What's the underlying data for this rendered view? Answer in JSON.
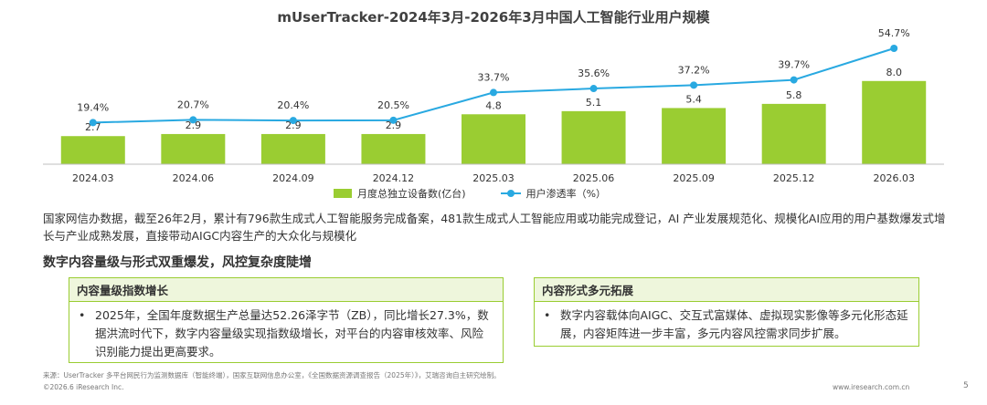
{
  "title": "mUserTracker-2024年3月-2026年3月中国人工智能行业用户规模",
  "chart_data": {
    "type": "bar",
    "categories": [
      "2024.03",
      "2024.06",
      "2024.09",
      "2024.12",
      "2025.03",
      "2025.06",
      "2025.09",
      "2025.12",
      "2026.03"
    ],
    "series": [
      {
        "name": "月度总独立设备数(亿台)",
        "type": "bar",
        "color": "#9acd32",
        "values": [
          2.7,
          2.9,
          2.9,
          2.9,
          4.8,
          5.1,
          5.4,
          5.8,
          8.0
        ],
        "labels": [
          "2.7",
          "2.9",
          "2.9",
          "2.9",
          "4.8",
          "5.1",
          "5.4",
          "5.8",
          "8.0"
        ]
      },
      {
        "name": "用户渗透率（%）",
        "type": "line",
        "color": "#29a9e1",
        "values": [
          19.4,
          20.7,
          20.4,
          20.5,
          33.7,
          35.6,
          37.2,
          39.7,
          54.7
        ],
        "labels": [
          "19.4%",
          "20.7%",
          "20.4%",
          "20.5%",
          "33.7%",
          "35.6%",
          "37.2%",
          "39.7%",
          "54.7%"
        ]
      }
    ],
    "legend_position": "bottom",
    "grid": false
  },
  "legend": {
    "bar_label": "月度总独立设备数(亿台)",
    "line_label": "用户渗透率（%）"
  },
  "note": "国家网信办数据，截至26年2月，累计有796款生成式人工智能服务完成备案，481款生成式人工智能应用或功能完成登记，AI 产业发展规范化、规模化AI应用的用户基数爆发式增长与产业成熟发展，直接带动AIGC内容生产的大众化与规模化",
  "subheading": "数字内容量级与形式双重爆发，风控复杂度陡增",
  "box_left": {
    "title": "内容量级指数增长",
    "text": "2025年，全国年度数据生产总量达52.26泽字节（ZB），同比增长27.3%，数据洪流时代下，数字内容量级实现指数级增长，对平台的内容审核效率、风险识别能力提出更高要求。"
  },
  "box_right": {
    "title": "内容形式多元拓展",
    "text": "数字内容载体向AIGC、交互式富媒体、虚拟现实影像等多元化形态延展，内容矩阵进一步丰富，多元内容风控需求同步扩展。"
  },
  "bullet": "•",
  "source": "来源：UserTracker 多平台网民行为监测数据库（智能终端），国家互联网信息办公室，《全国数据资源调查报告（2025年）》，艾瑞咨询自主研究绘制。",
  "copyright": "©2026.6 iResearch Inc.",
  "site": "www.iresearch.com.cn",
  "page_number": "5"
}
